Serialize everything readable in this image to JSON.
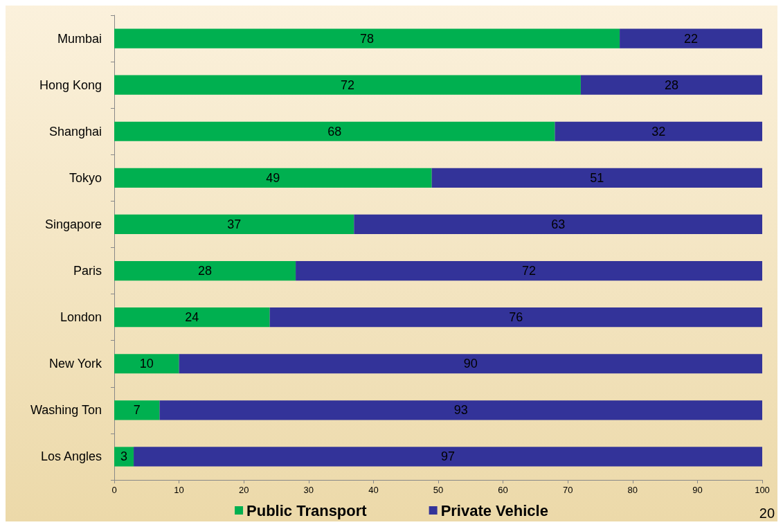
{
  "chart_data": {
    "type": "bar",
    "orientation": "horizontal",
    "stacked": true,
    "categories": [
      "Mumbai",
      "Hong Kong",
      "Shanghai",
      "Tokyo",
      "Singapore",
      "Paris",
      "London",
      "New York",
      "Washing Ton",
      "Los Angles"
    ],
    "series": [
      {
        "name": "Public Transport",
        "color": "#00b050",
        "values": [
          78,
          72,
          68,
          49,
          37,
          28,
          24,
          10,
          7,
          3
        ]
      },
      {
        "name": "Private Vehicle",
        "color": "#333399",
        "values": [
          22,
          28,
          32,
          51,
          63,
          72,
          76,
          90,
          93,
          97
        ]
      }
    ],
    "xlim": [
      0,
      100
    ],
    "xticks": [
      0,
      10,
      20,
      30,
      40,
      50,
      60,
      70,
      80,
      90,
      100
    ],
    "data_labels": true,
    "grid": false,
    "legend": "bottom",
    "annotations": [
      "20"
    ]
  }
}
